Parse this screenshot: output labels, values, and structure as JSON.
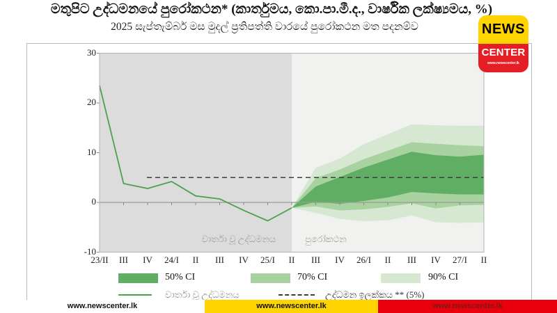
{
  "header": {
    "title": "මතුපිට උද්ධමනයේ පුරෝකථන* (කාර්තුමය, කො.පා.මී.ද., වාර්ෂික ලක්ෂ්‍යමය, %)",
    "subtitle": "2025 සැප්තැම්බර් මස මුදල් ප්‍රතිපත්ති වාරයේ පුරෝකථන මත පදනම්ව"
  },
  "logo": {
    "line1": "NEWS",
    "line2": "CENTER",
    "line3": "www.newscenter.lk",
    "colors": {
      "top_bg": "#ffd400",
      "top_fg": "#000000",
      "bottom_bg": "#e31e24",
      "bottom_fg": "#ffffff"
    }
  },
  "footer": {
    "segments": [
      {
        "text": "www.newscenter.lk",
        "bg": "#ffffff",
        "fg": "#111111"
      },
      {
        "text": "www.newscenter.lk",
        "bg": "#ffd400",
        "fg": "#111111"
      },
      {
        "text": "www.newscenter.lk",
        "bg": "#e8000d",
        "fg": "#7a1a12"
      }
    ]
  },
  "chart_data": {
    "type": "area",
    "description": "Fan chart: headline inflation (quarterly, CCPI, year-on-year, %) with 50/70/90% confidence bands for the forecast period",
    "categories": [
      "23/II",
      "III",
      "IV",
      "24/I",
      "II",
      "III",
      "IV",
      "25/I",
      "II",
      "III",
      "IV",
      "26/I",
      "II",
      "III",
      "IV",
      "27/I",
      "II"
    ],
    "y_ticks": [
      30,
      20,
      10,
      0,
      -10
    ],
    "ylim": [
      -10,
      30
    ],
    "grid": false,
    "series": [
      {
        "name": "වාර්තා වූ උද්ධමනය",
        "values": [
          23.5,
          3.8,
          2.8,
          4.2,
          1.3,
          0.7,
          -1.6,
          -3.7,
          -1.1,
          null,
          null,
          null,
          null,
          null,
          null,
          null,
          null
        ]
      }
    ],
    "forecast": {
      "start_index": 8,
      "start_category": "25/II",
      "ci50": {
        "top": [
          -1.1,
          3.2,
          5.1,
          7.0,
          8.6,
          10.2,
          9.5,
          9.2,
          9.6
        ],
        "bottom": [
          -1.1,
          0.1,
          -0.3,
          0.3,
          1.0,
          2.1,
          1.8,
          1.6,
          1.6
        ]
      },
      "ci70": {
        "top": [
          -1.1,
          4.9,
          6.6,
          8.7,
          10.4,
          12.1,
          11.8,
          11.5,
          11.3
        ],
        "bottom": [
          -1.1,
          -0.8,
          -1.6,
          -1.4,
          -0.9,
          -0.2,
          -1.2,
          -0.6,
          -0.5
        ]
      },
      "ci90": {
        "top": [
          -1.1,
          7.0,
          8.8,
          11.7,
          13.7,
          15.7,
          15.5,
          15.4,
          15.4
        ],
        "bottom": [
          -1.1,
          -2.1,
          -3.3,
          -3.8,
          -3.6,
          -2.6,
          -4.0,
          -4.1,
          -4.0
        ]
      }
    },
    "target_line": {
      "value": 5,
      "style": "dashed"
    },
    "annotations": [
      {
        "text": "වාර්තා වූ උද්ධමනය",
        "region": "history"
      },
      {
        "text": "පුරෝකථන",
        "region": "forecast"
      }
    ],
    "legend": {
      "position": "bottom",
      "ci_items": [
        {
          "label": "50% CI",
          "color_key": "ci50"
        },
        {
          "label": "70% CI",
          "color_key": "ci70"
        },
        {
          "label": "90% CI",
          "color_key": "ci90"
        }
      ],
      "line_item": {
        "label": "වාර්තා වූ උද්ධමනය"
      },
      "target_item": {
        "label": "උද්ධමන ඉලක්කය ** (5%)"
      }
    },
    "colors": {
      "ci50": "#5fae63",
      "ci70": "#a8d2a0",
      "ci90": "#d6e8d2",
      "line": "#4ca24c",
      "target": "#3d3d3d",
      "history_bg": "#dcdcdc",
      "forecast_bg": "#f1f1f0"
    }
  }
}
